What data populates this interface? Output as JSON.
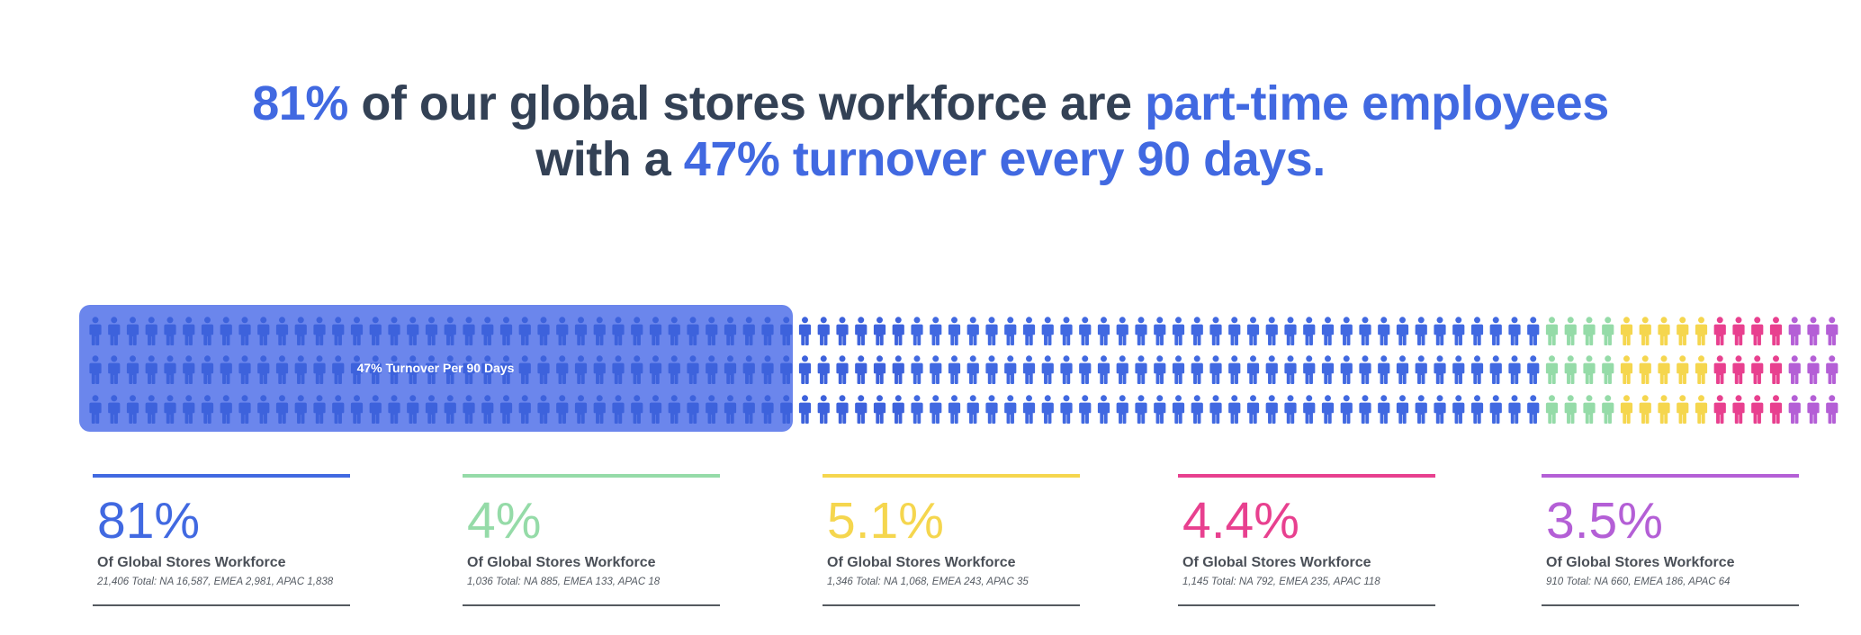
{
  "headline": {
    "line1_pct": "81%",
    "line1_mid": " of our global stores workforce are ",
    "line1_end": "part-time employees",
    "line2_start": "with a ",
    "line2_end": "47% turnover every 90 days."
  },
  "chart_data": {
    "type": "pictogram",
    "rows": 3,
    "overlay_label": "47% Turnover Per 90 Days",
    "overlay_share": 0.47,
    "segments": [
      {
        "value": 81,
        "display": "81%",
        "color": "#4169e1",
        "icons_per_row": 78
      },
      {
        "value": 4,
        "display": "4%",
        "color": "#95dba8",
        "icons_per_row": 4
      },
      {
        "value": 5.1,
        "display": "5.1%",
        "color": "#f5d64e",
        "icons_per_row": 5
      },
      {
        "value": 4.4,
        "display": "4.4%",
        "color": "#e8408f",
        "icons_per_row": 4
      },
      {
        "value": 3.5,
        "display": "3.5%",
        "color": "#b45fd6",
        "icons_per_row": 3
      }
    ]
  },
  "stats": [
    {
      "value": "81%",
      "color": "#4169e1",
      "label": "Of Global Stores Workforce",
      "detail": "21,406 Total: NA 16,587, EMEA 2,981, APAC 1,838"
    },
    {
      "value": "4%",
      "color": "#95dba8",
      "label": "Of Global Stores Workforce",
      "detail": "1,036 Total: NA 885, EMEA 133, APAC 18"
    },
    {
      "value": "5.1%",
      "color": "#f5d64e",
      "label": "Of Global Stores Workforce",
      "detail": "1,346 Total: NA 1,068, EMEA 243, APAC 35"
    },
    {
      "value": "4.4%",
      "color": "#e8408f",
      "label": "Of Global Stores Workforce",
      "detail": "1,145 Total: NA 792, EMEA 235, APAC 118"
    },
    {
      "value": "3.5%",
      "color": "#b45fd6",
      "label": "Of Global Stores Workforce",
      "detail": "910 Total: NA 660, EMEA 186, APAC 64"
    }
  ]
}
